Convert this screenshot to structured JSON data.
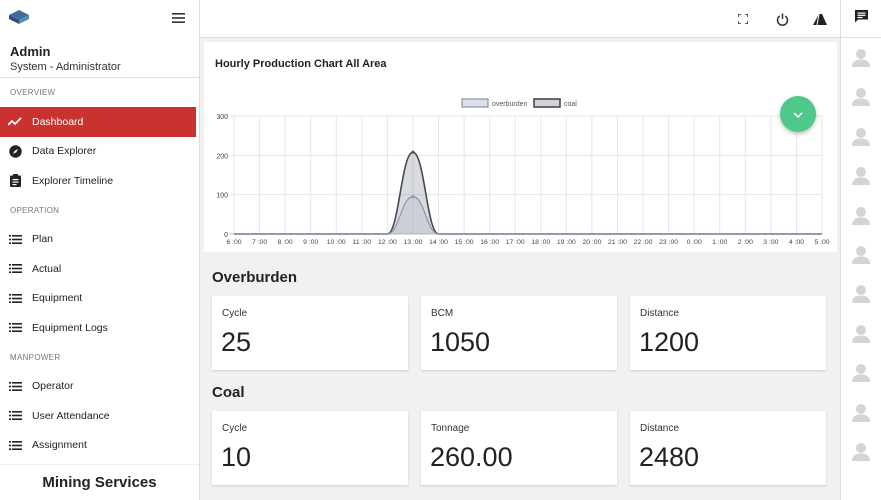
{
  "sidebar": {
    "user_name": "Admin",
    "user_role": "System - Administrator",
    "sections": {
      "overview": "OVERVIEW",
      "operation": "OPERATION",
      "manpower": "MANPOWER"
    },
    "items": {
      "dashboard": "Dashboard",
      "data_explorer": "Data Explorer",
      "explorer_timeline": "Explorer Timeline",
      "plan": "Plan",
      "actual": "Actual",
      "equipment": "Equipment",
      "equipment_logs": "Equipment Logs",
      "operator": "Operator",
      "user_attendance": "User Attendance",
      "assignment": "Assignment"
    },
    "brand": "Mining Services"
  },
  "topbar": {
    "icons": [
      "fullscreen-icon",
      "power-icon",
      "theme-icon"
    ]
  },
  "rail": {
    "icon": "chat-icon",
    "avatar_count": 11
  },
  "chart": {
    "title": "Hourly Production Chart All Area"
  },
  "chart_data": {
    "type": "area",
    "title": "Hourly Production Chart All Area",
    "categories": [
      "6 :00",
      "7 :00",
      "8 :00",
      "9 :00",
      "10 :00",
      "11 :00",
      "12 :00",
      "13 :00",
      "14 :00",
      "15 :00",
      "16 :00",
      "17 :00",
      "18 :00",
      "19 :00",
      "20 :00",
      "21 :00",
      "22 :00",
      "23 :00",
      "0 :00",
      "1 :00",
      "2 :00",
      "3 :00",
      "4 :00",
      "5 :00"
    ],
    "series": [
      {
        "name": "overburden",
        "values": [
          0,
          0,
          0,
          0,
          0,
          0,
          0,
          95,
          0,
          0,
          0,
          0,
          0,
          0,
          0,
          0,
          0,
          0,
          0,
          0,
          0,
          0,
          0,
          0
        ],
        "color": "#8a94b0"
      },
      {
        "name": "coal",
        "values": [
          0,
          0,
          0,
          0,
          0,
          0,
          0,
          208,
          0,
          0,
          0,
          0,
          0,
          0,
          0,
          0,
          0,
          0,
          0,
          0,
          0,
          0,
          0,
          0
        ],
        "color": "#444a55"
      }
    ],
    "yticks": [
      0,
      100,
      200,
      300
    ],
    "ylim": [
      0,
      300
    ],
    "grid": true,
    "legend": "top-center"
  },
  "overburden": {
    "title": "Overburden",
    "cards": [
      {
        "label": "Cycle",
        "value": "25"
      },
      {
        "label": "BCM",
        "value": "1050"
      },
      {
        "label": "Distance",
        "value": "1200"
      }
    ]
  },
  "coal": {
    "title": "Coal",
    "cards": [
      {
        "label": "Cycle",
        "value": "10"
      },
      {
        "label": "Tonnage",
        "value": "260.00"
      },
      {
        "label": "Distance",
        "value": "2480"
      }
    ]
  },
  "colors": {
    "accent": "#c9322f",
    "fab": "#4fc88a"
  }
}
